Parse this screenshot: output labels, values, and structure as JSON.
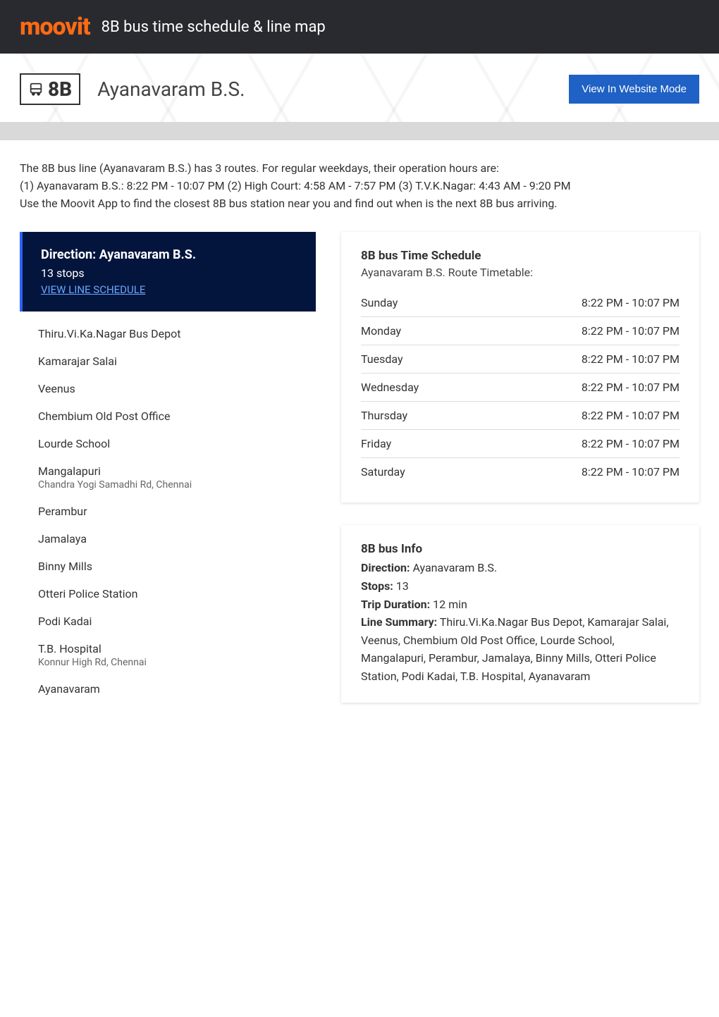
{
  "brand": "moovit",
  "header_title": "8B bus time schedule & line map",
  "route_label": "8B",
  "route_name": "Ayanavaram B.S.",
  "website_button": "View In Website Mode",
  "intro_p1": "The 8B bus line (Ayanavaram B.S.) has 3 routes. For regular weekdays, their operation hours are:",
  "intro_p2": "(1) Ayanavaram B.S.: 8:22 PM - 10:07 PM (2) High Court: 4:58 AM - 7:57 PM (3) T.V.K.Nagar: 4:43 AM - 9:20 PM",
  "intro_p3": "Use the Moovit App to find the closest 8B bus station near you and find out when is the next 8B bus arriving.",
  "direction": {
    "title": "Direction: Ayanavaram B.S.",
    "stops_label": "13 stops",
    "link": "VIEW LINE SCHEDULE"
  },
  "stops": [
    {
      "name": "Thiru.Vi.Ka.Nagar Bus Depot",
      "sub": ""
    },
    {
      "name": "Kamarajar Salai",
      "sub": ""
    },
    {
      "name": "Veenus",
      "sub": ""
    },
    {
      "name": "Chembium Old Post Office",
      "sub": ""
    },
    {
      "name": "Lourde School",
      "sub": ""
    },
    {
      "name": "Mangalapuri",
      "sub": "Chandra Yogi Samadhi Rd, Chennai"
    },
    {
      "name": "Perambur",
      "sub": ""
    },
    {
      "name": "Jamalaya",
      "sub": ""
    },
    {
      "name": "Binny Mills",
      "sub": ""
    },
    {
      "name": "Otteri Police Station",
      "sub": ""
    },
    {
      "name": "Podi Kadai",
      "sub": ""
    },
    {
      "name": "T.B. Hospital",
      "sub": "Konnur High Rd, Chennai"
    },
    {
      "name": "Ayanavaram",
      "sub": ""
    }
  ],
  "schedule": {
    "title": "8B bus Time Schedule",
    "subtitle": "Ayanavaram B.S. Route Timetable:",
    "rows": [
      {
        "day": "Sunday",
        "hours": "8:22 PM - 10:07 PM"
      },
      {
        "day": "Monday",
        "hours": "8:22 PM - 10:07 PM"
      },
      {
        "day": "Tuesday",
        "hours": "8:22 PM - 10:07 PM"
      },
      {
        "day": "Wednesday",
        "hours": "8:22 PM - 10:07 PM"
      },
      {
        "day": "Thursday",
        "hours": "8:22 PM - 10:07 PM"
      },
      {
        "day": "Friday",
        "hours": "8:22 PM - 10:07 PM"
      },
      {
        "day": "Saturday",
        "hours": "8:22 PM - 10:07 PM"
      }
    ]
  },
  "info": {
    "title": "8B bus Info",
    "direction_label": "Direction:",
    "direction_value": "Ayanavaram B.S.",
    "stops_label": "Stops:",
    "stops_value": "13",
    "duration_label": "Trip Duration:",
    "duration_value": "12 min",
    "summary_label": "Line Summary:",
    "summary_value": "Thiru.Vi.Ka.Nagar Bus Depot, Kamarajar Salai, Veenus, Chembium Old Post Office, Lourde School, Mangalapuri, Perambur, Jamalaya, Binny Mills, Otteri Police Station, Podi Kadai, T.B. Hospital, Ayanavaram"
  },
  "colors": {
    "brand": "#ff6a13",
    "header_bg": "#292a30",
    "direction_bg": "#04153d",
    "link": "#6aa7ff",
    "button": "#1f61c4",
    "border": "#dddddd"
  }
}
